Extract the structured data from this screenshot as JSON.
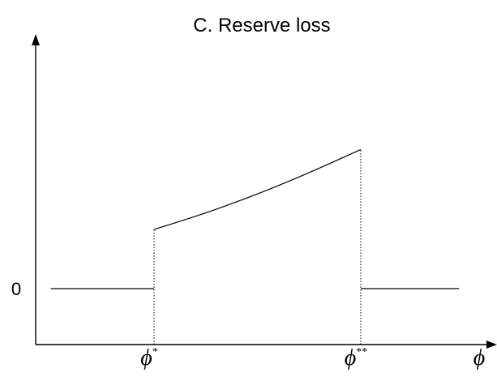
{
  "chart_data": {
    "type": "line",
    "title": "C.  Reserve loss",
    "xlabel": "ϕ",
    "ylabel": "",
    "ylim": [
      -1,
      3
    ],
    "xlim": [
      -1,
      2.6
    ],
    "y_tick_labels": [
      {
        "value": 0,
        "label": "0"
      }
    ],
    "x_tick_labels": [
      {
        "value": 0,
        "base": "ϕ",
        "sup": "*"
      },
      {
        "value": 2,
        "base": "ϕ",
        "sup": "**"
      }
    ],
    "grid": false,
    "legend": "none",
    "series": [
      {
        "segments": [
          {
            "x": [
              -1,
              0
            ],
            "y": [
              0,
              0
            ]
          },
          {
            "x": [
              0,
              0.5,
              1,
              1.5,
              2
            ],
            "y": [
              1.0,
              1.28,
              1.6,
              1.96,
              2.35
            ]
          },
          {
            "x": [
              2,
              2.95
            ],
            "y": [
              0,
              0
            ]
          }
        ]
      }
    ],
    "guides": [
      {
        "x": 0,
        "y_from": -1,
        "y_to": 1.0
      },
      {
        "x": 2,
        "y_from": -1,
        "y_to": 2.35
      }
    ]
  }
}
